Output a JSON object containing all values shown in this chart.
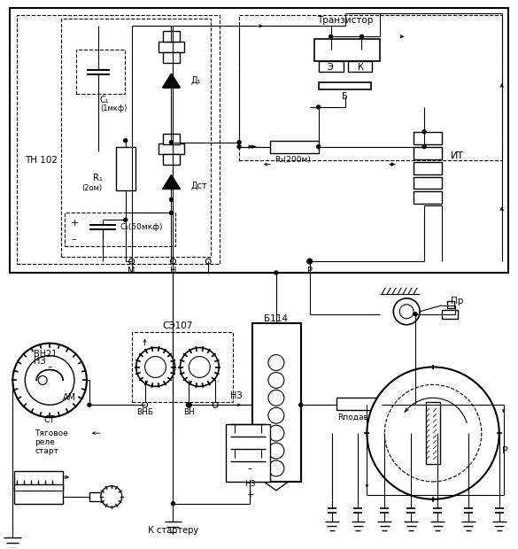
{
  "bg": "#ffffff",
  "lc": "#000000",
  "labels": {
    "transistor": "Транзистор",
    "tn102": "ТН 102",
    "c1": "C₁",
    "c1v": "(1мкф)",
    "d1": "Д₁",
    "r1": "R₁",
    "r1v": "(2ом)",
    "dst": "Дст",
    "c2": "C₂(50мкф)",
    "r2": "R₂(200м)",
    "it": "ИТ",
    "E": "Э",
    "K": "К",
    "B": "Б",
    "M": "М",
    "N": "Н",
    "P": "Р",
    "Pr": "Пр",
    "vn21": "ВН21",
    "n3": "НЗ",
    "am": "АМ",
    "ct": "СТ",
    "se107": "СЭ107",
    "vnb": "ВНБ",
    "vn": "ВН",
    "n3b": "НЗ",
    "b114": "Б114",
    "rpod": "Rподав",
    "P2": "Р",
    "tyag": "Тяговое",
    "rele": "реле",
    "start": "старт",
    "kstart": "К стартеру"
  }
}
